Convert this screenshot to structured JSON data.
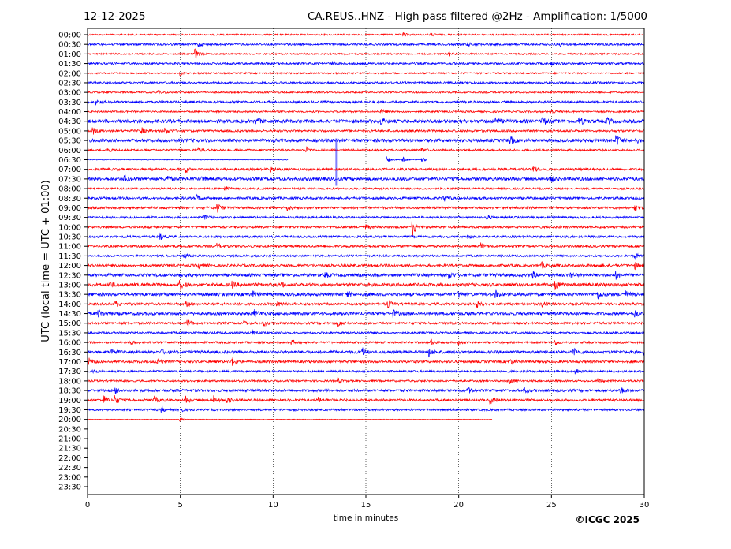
{
  "chart_data": {
    "type": "line",
    "title_left": "12-12-2025",
    "title_right": "CA.REUS..HNZ - High pass filtered @2Hz - Amplification: 1/5000",
    "xlabel": "time in minutes",
    "ylabel": "UTC (local time = UTC + 01:00)",
    "copyright": "©ICGC 2025",
    "xlim": [
      0,
      30
    ],
    "x_ticks": [
      "0",
      "5",
      "10",
      "15",
      "20",
      "25",
      "30"
    ],
    "x_tick_values": [
      0,
      5,
      10,
      15,
      20,
      25,
      30
    ],
    "grid": "vertical dotted at 5-minute ticks",
    "colors": {
      "odd_rows": "#ff0000",
      "even_rows": "#0000ff",
      "axis": "#000000"
    },
    "row_labels": [
      "00:00",
      "00:30",
      "01:00",
      "01:30",
      "02:00",
      "02:30",
      "03:00",
      "03:30",
      "04:00",
      "04:30",
      "05:00",
      "05:30",
      "06:00",
      "06:30",
      "07:00",
      "07:30",
      "08:00",
      "08:30",
      "09:00",
      "09:30",
      "10:00",
      "10:30",
      "11:00",
      "11:30",
      "12:00",
      "12:30",
      "13:00",
      "13:30",
      "14:00",
      "14:30",
      "15:00",
      "15:30",
      "16:00",
      "16:30",
      "17:00",
      "17:30",
      "18:00",
      "18:30",
      "19:00",
      "19:30",
      "20:00",
      "20:30",
      "21:00",
      "21:30",
      "22:00",
      "22:30",
      "23:00",
      "23:30"
    ],
    "traces": [
      {
        "row": "00:00",
        "noise": 1.0,
        "events": [
          [
            17,
            2.5
          ],
          [
            18.5,
            2
          ]
        ]
      },
      {
        "row": "00:30",
        "noise": 1.3,
        "events": [
          [
            6,
            2.5
          ],
          [
            20.5,
            2.5
          ],
          [
            25.5,
            2
          ]
        ]
      },
      {
        "row": "01:00",
        "noise": 1.0,
        "events": [
          [
            5.8,
            7
          ],
          [
            19.5,
            2.5
          ]
        ]
      },
      {
        "row": "01:30",
        "noise": 1.3,
        "events": [
          [
            13.2,
            2.5
          ],
          [
            25,
            2
          ]
        ]
      },
      {
        "row": "02:00",
        "noise": 1.0,
        "events": [
          [
            5,
            2
          ]
        ]
      },
      {
        "row": "02:30",
        "noise": 1.3,
        "events": []
      },
      {
        "row": "03:00",
        "noise": 1.0,
        "events": [
          [
            3.8,
            2
          ]
        ]
      },
      {
        "row": "03:30",
        "noise": 1.5,
        "events": [
          [
            0.5,
            2.5
          ]
        ]
      },
      {
        "row": "04:00",
        "noise": 1.1,
        "events": [
          [
            15.8,
            3
          ],
          [
            25,
            2.5
          ]
        ]
      },
      {
        "row": "04:30",
        "noise": 2.2,
        "events": [
          [
            9.1,
            3.5
          ],
          [
            15.8,
            4
          ],
          [
            22,
            3.5
          ],
          [
            24.5,
            5
          ],
          [
            26.5,
            5
          ],
          [
            28,
            4
          ]
        ]
      },
      {
        "row": "05:00",
        "noise": 1.4,
        "events": [
          [
            0.3,
            4
          ],
          [
            2.9,
            4
          ],
          [
            4.2,
            3.5
          ]
        ]
      },
      {
        "row": "05:30",
        "noise": 2.0,
        "events": [
          [
            22.8,
            4
          ],
          [
            28.5,
            7
          ],
          [
            29.5,
            4
          ]
        ]
      },
      {
        "row": "06:00",
        "noise": 1.3,
        "events": [
          [
            1.1,
            3
          ],
          [
            6,
            2.5
          ],
          [
            11.8,
            3.5
          ],
          [
            18,
            2.5
          ]
        ]
      },
      {
        "row": "06:30",
        "noise": 0.5,
        "segments": [
          [
            0,
            10.8
          ],
          [
            16.1,
            18.3
          ]
        ],
        "glitch": 13.4,
        "events": [
          [
            16.1,
            4
          ],
          [
            17,
            3
          ],
          [
            18,
            3
          ]
        ]
      },
      {
        "row": "07:00",
        "noise": 1.5,
        "events": [
          [
            5.3,
            3
          ],
          [
            9.9,
            3
          ],
          [
            24,
            4.5
          ]
        ]
      },
      {
        "row": "07:30",
        "noise": 2.0,
        "events": [
          [
            2,
            4
          ],
          [
            4.3,
            3.5
          ],
          [
            6.2,
            3
          ],
          [
            25,
            3
          ]
        ]
      },
      {
        "row": "08:00",
        "noise": 1.2,
        "events": [
          [
            7.4,
            3.5
          ]
        ]
      },
      {
        "row": "08:30",
        "noise": 1.5,
        "events": [
          [
            5.9,
            3.5
          ],
          [
            19.2,
            3.5
          ]
        ]
      },
      {
        "row": "09:00",
        "noise": 1.5,
        "events": [
          [
            7,
            6
          ],
          [
            10.8,
            3
          ],
          [
            29.5,
            3
          ]
        ]
      },
      {
        "row": "09:30",
        "noise": 1.4,
        "events": [
          [
            6.3,
            3
          ],
          [
            21.5,
            3
          ]
        ]
      },
      {
        "row": "10:00",
        "noise": 1.5,
        "events": [
          [
            17.5,
            12
          ],
          [
            15,
            3
          ]
        ]
      },
      {
        "row": "10:30",
        "noise": 1.4,
        "events": [
          [
            3.9,
            4
          ],
          [
            20.5,
            2.5
          ]
        ]
      },
      {
        "row": "11:00",
        "noise": 1.4,
        "events": [
          [
            7,
            3.5
          ],
          [
            21.2,
            4
          ]
        ]
      },
      {
        "row": "11:30",
        "noise": 1.3,
        "events": [
          [
            5.2,
            3
          ],
          [
            29.5,
            3.5
          ]
        ]
      },
      {
        "row": "12:00",
        "noise": 1.6,
        "events": [
          [
            6,
            3
          ],
          [
            24.5,
            3.5
          ],
          [
            27.5,
            3
          ],
          [
            29.5,
            4
          ]
        ]
      },
      {
        "row": "12:30",
        "noise": 2.0,
        "events": [
          [
            12.8,
            3
          ],
          [
            19.5,
            3.5
          ],
          [
            24,
            4
          ],
          [
            26,
            4
          ],
          [
            28.5,
            4
          ]
        ]
      },
      {
        "row": "13:00",
        "noise": 2.0,
        "events": [
          [
            1.2,
            4
          ],
          [
            5,
            6
          ],
          [
            7.8,
            3.5
          ],
          [
            10.4,
            5
          ],
          [
            25.2,
            4.5
          ]
        ]
      },
      {
        "row": "13:30",
        "noise": 2.0,
        "events": [
          [
            8.9,
            3.5
          ],
          [
            14,
            3.5
          ],
          [
            20,
            3.5
          ],
          [
            22,
            4
          ],
          [
            27.5,
            5
          ],
          [
            29,
            3.5
          ]
        ]
      },
      {
        "row": "14:00",
        "noise": 1.6,
        "events": [
          [
            1.5,
            4
          ],
          [
            5.3,
            4
          ],
          [
            10.2,
            3.5
          ],
          [
            16.2,
            4.5
          ],
          [
            21,
            3.5
          ],
          [
            24.5,
            4
          ]
        ]
      },
      {
        "row": "14:30",
        "noise": 1.8,
        "events": [
          [
            0.6,
            4
          ],
          [
            9,
            4
          ],
          [
            16.5,
            4
          ],
          [
            29.5,
            4.5
          ]
        ]
      },
      {
        "row": "15:00",
        "noise": 1.4,
        "events": [
          [
            5.4,
            4.5
          ],
          [
            8.4,
            3.5
          ],
          [
            9.5,
            3.5
          ],
          [
            13.5,
            4
          ]
        ]
      },
      {
        "row": "15:30",
        "noise": 1.3,
        "events": [
          [
            8.9,
            4
          ]
        ]
      },
      {
        "row": "16:00",
        "noise": 1.3,
        "events": [
          [
            2.3,
            3
          ],
          [
            11,
            3
          ],
          [
            18.5,
            4
          ],
          [
            20,
            3
          ],
          [
            25.2,
            3
          ]
        ]
      },
      {
        "row": "16:30",
        "noise": 1.8,
        "events": [
          [
            1.3,
            4
          ],
          [
            4,
            3.5
          ],
          [
            14.8,
            5
          ],
          [
            18.4,
            5
          ],
          [
            26.2,
            4.5
          ],
          [
            30,
            3
          ]
        ]
      },
      {
        "row": "17:00",
        "noise": 1.5,
        "events": [
          [
            0.1,
            4
          ],
          [
            3.8,
            5
          ],
          [
            7.8,
            5
          ],
          [
            22.8,
            3
          ]
        ]
      },
      {
        "row": "17:30",
        "noise": 1.3,
        "events": [
          [
            0.3,
            3
          ],
          [
            26.3,
            3.5
          ]
        ]
      },
      {
        "row": "18:00",
        "noise": 1.2,
        "events": [
          [
            13.5,
            3.5
          ],
          [
            22.8,
            3
          ],
          [
            27.5,
            3
          ]
        ]
      },
      {
        "row": "18:30",
        "noise": 1.6,
        "events": [
          [
            1.5,
            3.5
          ],
          [
            20.5,
            3.5
          ],
          [
            23.5,
            3.5
          ],
          [
            28.7,
            4.5
          ]
        ]
      },
      {
        "row": "19:00",
        "noise": 1.6,
        "events": [
          [
            0.9,
            4.5
          ],
          [
            1.5,
            5
          ],
          [
            3.6,
            4
          ],
          [
            5.3,
            4
          ],
          [
            6.8,
            5
          ],
          [
            7.5,
            4
          ],
          [
            12.4,
            3.5
          ],
          [
            21.7,
            4.5
          ]
        ]
      },
      {
        "row": "19:30",
        "noise": 1.3,
        "events": [
          [
            4,
            3
          ],
          [
            5,
            3
          ]
        ]
      },
      {
        "row": "20:00",
        "noise": 0.4,
        "segments": [
          [
            0,
            21.8
          ]
        ],
        "events": [
          [
            5,
            2.5
          ]
        ]
      }
    ]
  }
}
